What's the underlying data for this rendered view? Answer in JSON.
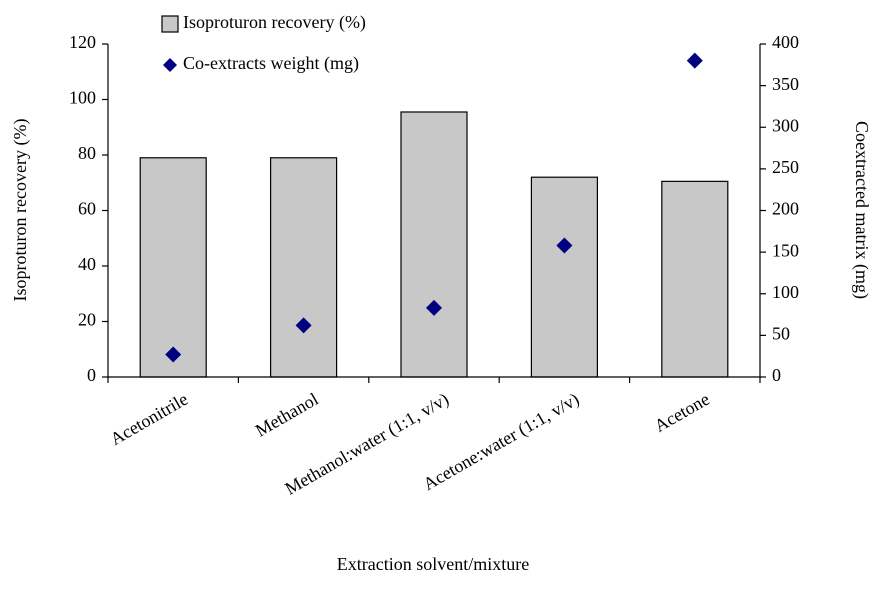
{
  "chart_data": {
    "type": "bar",
    "x_label": "Extraction solvent/mixture",
    "y_label": "Isoproturon recovery (%)",
    "y2_label": "Coextracted matrix (mg)",
    "categories": [
      "Acetonitrile",
      "Methanol",
      "Methanol:water (1:1, v/v)",
      "Acetone:water (1:1, v/v)",
      "Acetone"
    ],
    "series": [
      {
        "name": "Isoproturon recovery (%)",
        "type": "bar",
        "color": "#c8c8c8",
        "values": [
          79,
          79,
          95.5,
          72,
          70.5
        ]
      },
      {
        "name": "Co-extracts weight (mg)",
        "type": "scatter",
        "axis": "y2",
        "color": "#000080",
        "values": [
          27,
          62,
          83,
          158,
          380
        ]
      }
    ],
    "ylim": [
      0,
      120
    ],
    "yticks": [
      0,
      20,
      40,
      60,
      80,
      100,
      120
    ],
    "y2lim": [
      0,
      400
    ],
    "y2ticks": [
      0,
      50,
      100,
      150,
      200,
      250,
      300,
      350,
      400
    ],
    "legend": "top"
  }
}
